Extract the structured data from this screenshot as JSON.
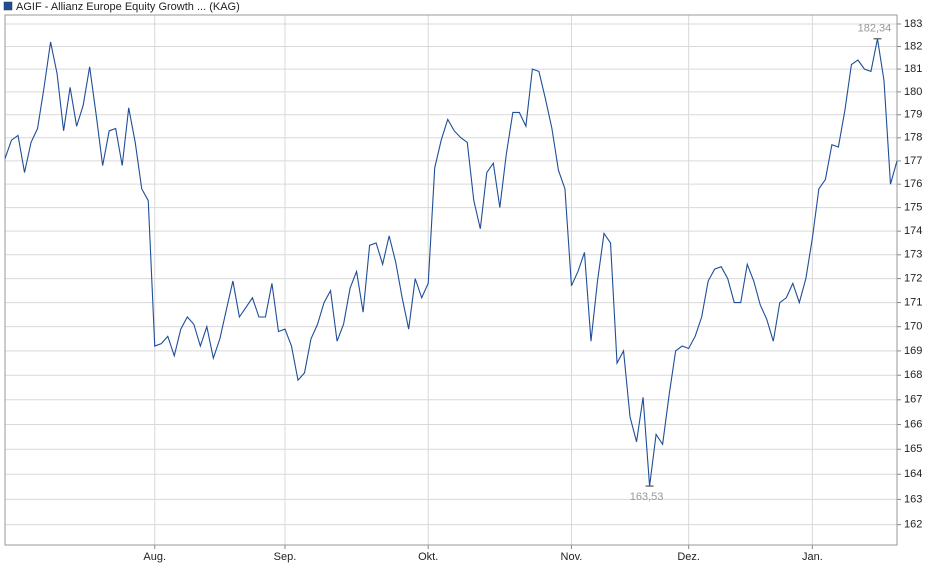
{
  "chart_data": {
    "type": "line",
    "categories": [
      null,
      null,
      null,
      null,
      null,
      null,
      null,
      null,
      null,
      null,
      null,
      null,
      null,
      null,
      null,
      null,
      null,
      null,
      null,
      null,
      null,
      null,
      null,
      "Aug.",
      null,
      null,
      null,
      null,
      null,
      null,
      null,
      null,
      null,
      null,
      null,
      null,
      null,
      null,
      null,
      null,
      null,
      null,
      null,
      "Sep.",
      null,
      null,
      null,
      null,
      null,
      null,
      null,
      null,
      null,
      null,
      null,
      null,
      null,
      null,
      null,
      null,
      null,
      null,
      null,
      null,
      null,
      "Okt.",
      null,
      null,
      null,
      null,
      null,
      null,
      null,
      null,
      null,
      null,
      null,
      null,
      null,
      null,
      null,
      null,
      null,
      null,
      null,
      null,
      null,
      "Nov.",
      null,
      null,
      null,
      null,
      null,
      null,
      null,
      null,
      null,
      null,
      null,
      null,
      null,
      null,
      null,
      null,
      null,
      "Dez.",
      null,
      null,
      null,
      null,
      null,
      null,
      null,
      null,
      null,
      null,
      null,
      null,
      null,
      null,
      null,
      null,
      null,
      null,
      "Jan.",
      null,
      null,
      null,
      null,
      null,
      null,
      null,
      null,
      null,
      null,
      null,
      null,
      null
    ],
    "series": [
      {
        "name": "AGIF - Allianz Europe Equity Growth ... (KAG)",
        "color": "#1f4e99",
        "values": [
          177.1,
          177.9,
          178.1,
          176.5,
          177.8,
          178.4,
          180.2,
          182.2,
          180.8,
          178.3,
          180.2,
          178.5,
          179.4,
          181.1,
          179.0,
          176.8,
          178.3,
          178.4,
          176.8,
          179.3,
          177.8,
          175.8,
          175.3,
          169.2,
          169.3,
          169.6,
          168.8,
          169.9,
          170.4,
          170.1,
          169.2,
          170.0,
          168.7,
          169.5,
          170.7,
          171.9,
          170.4,
          170.8,
          171.2,
          170.4,
          170.4,
          171.8,
          169.8,
          169.9,
          169.2,
          167.8,
          168.1,
          169.5,
          170.1,
          171.0,
          171.5,
          169.4,
          170.1,
          171.6,
          172.3,
          170.6,
          173.4,
          173.5,
          172.6,
          173.8,
          172.7,
          171.2,
          169.9,
          172.0,
          171.2,
          171.8,
          176.7,
          177.9,
          178.8,
          178.3,
          178.0,
          177.8,
          175.3,
          174.1,
          176.5,
          176.9,
          175.0,
          177.3,
          179.1,
          179.1,
          178.5,
          181.0,
          180.9,
          179.7,
          178.4,
          176.6,
          175.8,
          171.7,
          172.3,
          173.1,
          169.4,
          171.9,
          173.9,
          173.5,
          168.5,
          169.0,
          166.3,
          165.3,
          167.1,
          163.53,
          165.6,
          165.2,
          167.2,
          169.0,
          169.2,
          169.1,
          169.6,
          170.4,
          171.9,
          172.4,
          172.5,
          172.0,
          171.0,
          171.0,
          172.6,
          171.9,
          170.9,
          170.3,
          169.4,
          171.0,
          171.2,
          171.8,
          171.0,
          172.0,
          173.7,
          175.8,
          176.2,
          177.7,
          177.6,
          179.2,
          181.2,
          181.4,
          181.0,
          180.9,
          182.34,
          180.5,
          176.0,
          177.0
        ],
        "value_labels": [
          null,
          null,
          null,
          null,
          null,
          null,
          null,
          null,
          null,
          null,
          null,
          null,
          null,
          null,
          null,
          null,
          null,
          null,
          null,
          null,
          null,
          null,
          null,
          null,
          null,
          null,
          null,
          null,
          null,
          null,
          null,
          null,
          null,
          null,
          null,
          null,
          null,
          null,
          null,
          null,
          null,
          null,
          null,
          null,
          null,
          null,
          null,
          null,
          null,
          null,
          null,
          null,
          null,
          null,
          null,
          null,
          null,
          null,
          null,
          null,
          null,
          null,
          null,
          null,
          null,
          null,
          null,
          null,
          null,
          null,
          null,
          null,
          null,
          null,
          null,
          null,
          null,
          null,
          null,
          null,
          null,
          null,
          null,
          null,
          null,
          null,
          null,
          null,
          null,
          null,
          null,
          null,
          null,
          null,
          null,
          null,
          null,
          null,
          null,
          "163,53",
          null,
          null,
          null,
          null,
          null,
          null,
          null,
          null,
          null,
          null,
          null,
          null,
          null,
          null,
          null,
          null,
          null,
          null,
          null,
          null,
          null,
          null,
          null,
          null,
          null,
          null,
          null,
          null,
          null,
          null,
          null,
          null,
          null,
          null,
          "182,34",
          null,
          null,
          null
        ]
      }
    ],
    "ylim": [
      161.2,
      183.4
    ],
    "log_y": true,
    "yticks": [
      162,
      163,
      164,
      165,
      166,
      167,
      168,
      169,
      170,
      171,
      172,
      173,
      174,
      175,
      176,
      177,
      178,
      179,
      180,
      181,
      182,
      183
    ],
    "grid": true
  }
}
